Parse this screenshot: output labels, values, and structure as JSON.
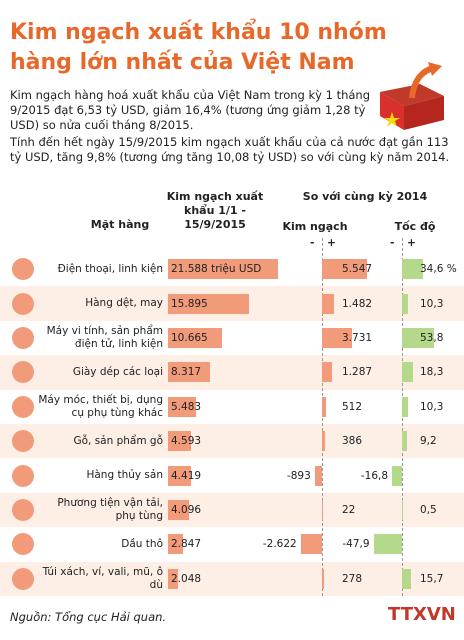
{
  "chart_data": {
    "type": "bar",
    "title": "Kim ngạch xuất khẩu 10 nhóm hàng lớn nhất của Việt Nam",
    "intro": [
      "Kim ngạch hàng hoá xuất khẩu của Việt Nam trong kỳ 1 tháng 9/2015 đạt 6,53 tỷ USD, giảm 16,4% (tương ứng giảm 1,28 tỷ USD) so nửa cuối tháng 8/2015.",
      "Tính đến hết ngày 15/9/2015 kim ngạch xuất khẩu của cả nước đạt gần 113 tỷ USD, tăng 9,8% (tương ứng tăng 10,08 tỷ USD) so với cùng kỳ năm 2014."
    ],
    "category_header": "Mặt hàng",
    "column_group": "So với cùng kỳ 2014",
    "sign_labels": [
      "-",
      "+"
    ],
    "categories": [
      "Điện thoại, linh kiện",
      "Hàng dệt, may",
      "Máy vi tính, sản phẩm điện tử, linh kiện",
      "Giày dép các loại",
      "Máy móc, thiết bị, dụng cụ phụ tùng khác",
      "Gỗ, sản phẩm gỗ",
      "Hàng thủy sản",
      "Phương tiện vận tải, phụ tùng",
      "Dầu thô",
      "Túi xách, ví, vali, mũ, ô dù"
    ],
    "series": [
      {
        "name": "Kim ngạch xuất khẩu 1/1 - 15/9/2015",
        "color": "#f29b7a",
        "values": [
          21588,
          15895,
          10665,
          8317,
          5483,
          4593,
          4419,
          4096,
          2847,
          2048
        ],
        "value_labels": [
          "21.588 triệu USD",
          "15.895",
          "10.665",
          "8.317",
          "5.483",
          "4.593",
          "4.419",
          "4.096",
          "2.847",
          "2.048"
        ]
      },
      {
        "name": "Kim ngạch",
        "color": "#f29b7a",
        "values": [
          5547,
          1482,
          3731,
          1287,
          512,
          386,
          -893,
          22,
          -2622,
          278
        ],
        "value_labels": [
          "5.547",
          "1.482",
          "3.731",
          "1.287",
          "512",
          "386",
          "-893",
          "22",
          "-2.622",
          "278"
        ]
      },
      {
        "name": "Tốc độ",
        "color": "#b5d98a",
        "values": [
          34.6,
          10.3,
          53.8,
          18.3,
          10.3,
          9.2,
          -16.8,
          0.5,
          -47.9,
          15.7
        ],
        "value_labels": [
          "34,6 %",
          "10,3",
          "53,8",
          "18,3",
          "10,3",
          "9,2",
          "-16,8",
          "0,5",
          "-47,9",
          "15,7"
        ]
      }
    ],
    "source": "Nguồn: Tổng cục Hải quan.",
    "logo": "TTXVN"
  }
}
